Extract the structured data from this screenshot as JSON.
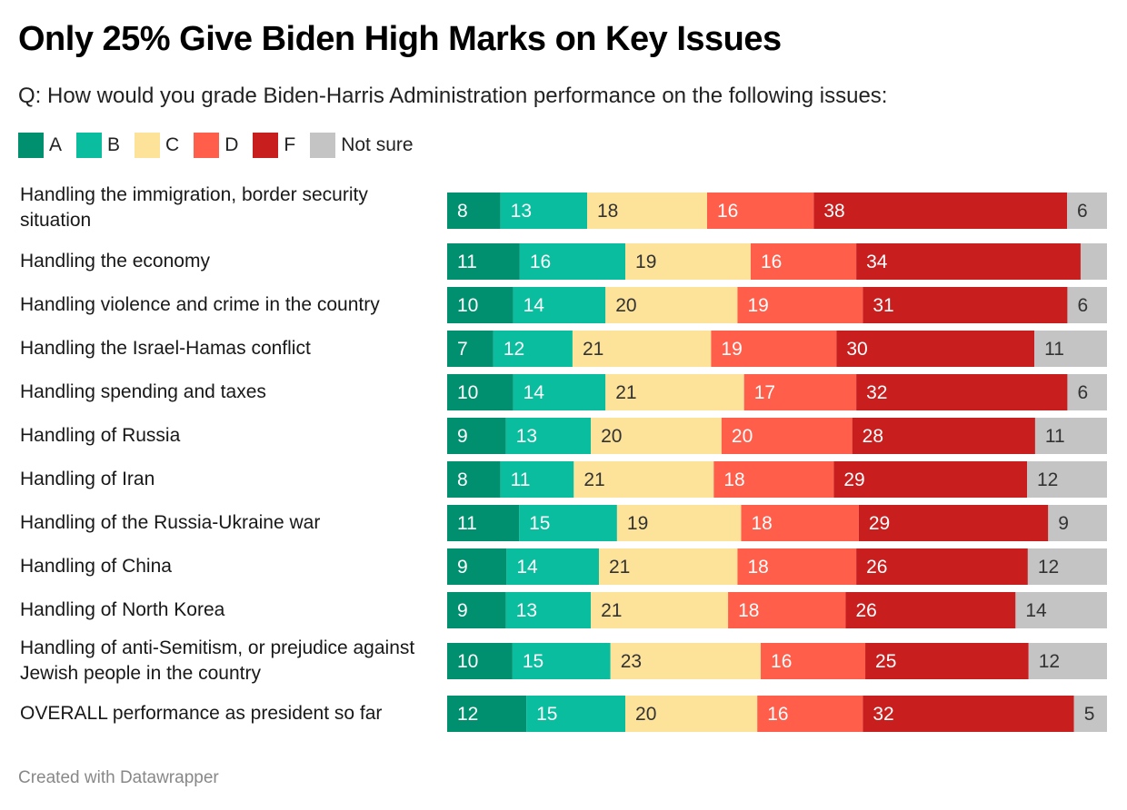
{
  "header": {
    "title": "Only 25% Give Biden High Marks on Key Issues",
    "subtitle": "Q: How would you grade Biden-Harris Administration performance on the following issues:"
  },
  "legend": [
    {
      "label": "A",
      "color": "#00906f",
      "text_color": "#ffffff"
    },
    {
      "label": "B",
      "color": "#0abd9f",
      "text_color": "#ffffff"
    },
    {
      "label": "C",
      "color": "#fde29a",
      "text_color": "#333333"
    },
    {
      "label": "D",
      "color": "#ff5e4b",
      "text_color": "#ffffff"
    },
    {
      "label": "F",
      "color": "#c81e1e",
      "text_color": "#ffffff"
    },
    {
      "label": "Not sure",
      "color": "#c4c4c4",
      "text_color": "#333333"
    }
  ],
  "chart_data": {
    "type": "bar",
    "orientation": "horizontal",
    "stacked": true,
    "title": "Only 25% Give Biden High Marks on Key Issues",
    "subtitle": "Q: How would you grade Biden-Harris Administration performance on the following issues:",
    "legend_position": "top-left",
    "categories": [
      "Handling the immigration, border security situation",
      "Handling the economy",
      "Handling violence and crime in the country",
      "Handling the Israel-Hamas conflict",
      "Handling spending and taxes",
      "Handling of Russia",
      "Handling of Iran",
      "Handling of the Russia-Ukraine war",
      "Handling of China",
      "Handling of North Korea",
      "Handling of anti-Semitism, or prejudice against Jewish people in the country",
      "OVERALL performance as president so far"
    ],
    "series": [
      {
        "name": "A",
        "values": [
          8,
          11,
          10,
          7,
          10,
          9,
          8,
          11,
          9,
          9,
          10,
          12
        ]
      },
      {
        "name": "B",
        "values": [
          13,
          16,
          14,
          12,
          14,
          13,
          11,
          15,
          14,
          13,
          15,
          15
        ]
      },
      {
        "name": "C",
        "values": [
          18,
          19,
          20,
          21,
          21,
          20,
          21,
          19,
          21,
          21,
          23,
          20
        ]
      },
      {
        "name": "D",
        "values": [
          16,
          16,
          19,
          19,
          17,
          20,
          18,
          18,
          18,
          18,
          16,
          16
        ]
      },
      {
        "name": "F",
        "values": [
          38,
          34,
          31,
          30,
          32,
          28,
          29,
          29,
          26,
          26,
          25,
          32
        ]
      },
      {
        "name": "Not sure",
        "values": [
          6,
          4,
          6,
          11,
          6,
          11,
          12,
          9,
          12,
          14,
          12,
          5
        ]
      }
    ],
    "hidden_labels": [
      [
        1,
        5
      ]
    ],
    "xlabel": "",
    "ylabel": "",
    "grid": false
  },
  "footer": {
    "credit": "Created with Datawrapper"
  }
}
